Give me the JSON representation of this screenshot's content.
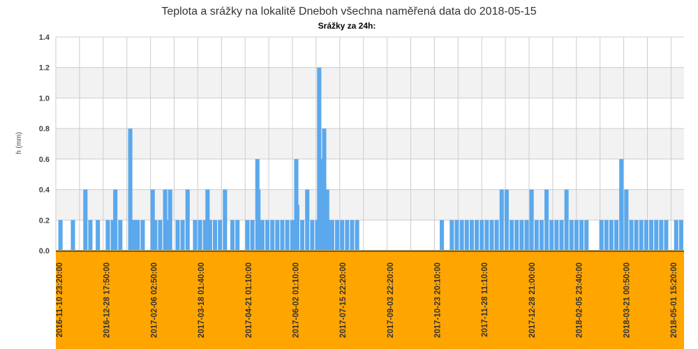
{
  "colors": {
    "bar": "#5ba8ec",
    "band": "#f2f2f2",
    "grid": "#cccccc",
    "axis_band": "#ffa500",
    "axis_line": "#c83232",
    "baseline": "#7ed17e"
  },
  "chart_data": {
    "type": "bar",
    "title": "Teplota a srážky na lokalitě Dneboh všechna naměřená data do 2018-05-15",
    "subtitle": "Srážky za 24h:",
    "ylabel": "h (mm)",
    "xlabel": "",
    "ylim": [
      0,
      1.4
    ],
    "yticks": [
      "0.0",
      "0.2",
      "0.4",
      "0.6",
      "0.8",
      "1.0",
      "1.2",
      "1.4"
    ],
    "grid": true,
    "x_tick_labels": [
      "2016-11-10 23:20:00",
      "2016-12-28 17:50:00",
      "2017-02-06 02:50:00",
      "2017-03-18 01:40:00",
      "2017-04-21 01:10:00",
      "2017-06-02 01:10:00",
      "2017-07-15 22:20:00",
      "2017-09-03 22:20:00",
      "2017-10-23 20:10:00",
      "2017-11-28 11:10:00",
      "2017-12-28 21:00:00",
      "2018-02-05 23:40:00",
      "2018-03-21 00:50:00",
      "2018-05-01 15:20:00"
    ],
    "series": [
      {
        "values": [
          [
            0.5,
            0.2
          ],
          [
            3,
            0.2
          ],
          [
            5.5,
            0.4
          ],
          [
            6.5,
            0.2
          ],
          [
            8,
            0.2
          ],
          [
            10,
            0.2
          ],
          [
            11,
            0.2
          ],
          [
            11.5,
            0.4
          ],
          [
            12.5,
            0.2
          ],
          [
            14.5,
            0.8
          ],
          [
            15,
            0.2
          ],
          [
            15.5,
            0.2
          ],
          [
            16,
            0.2
          ],
          [
            17,
            0.2
          ],
          [
            19,
            0.4
          ],
          [
            19.5,
            0.2
          ],
          [
            20.5,
            0.2
          ],
          [
            21.5,
            0.4
          ],
          [
            22,
            0.2
          ],
          [
            22.5,
            0.4
          ],
          [
            24,
            0.2
          ],
          [
            25,
            0.2
          ],
          [
            26,
            0.4
          ],
          [
            27.5,
            0.2
          ],
          [
            28.5,
            0.2
          ],
          [
            29.5,
            0.2
          ],
          [
            30,
            0.4
          ],
          [
            30.5,
            0.2
          ],
          [
            31.5,
            0.2
          ],
          [
            32.5,
            0.2
          ],
          [
            33.5,
            0.4
          ],
          [
            35,
            0.2
          ],
          [
            36,
            0.2
          ],
          [
            38,
            0.2
          ],
          [
            39,
            0.2
          ],
          [
            40,
            0.6
          ],
          [
            40.2,
            0.4
          ],
          [
            41,
            0.2
          ],
          [
            42,
            0.2
          ],
          [
            43,
            0.2
          ],
          [
            44,
            0.2
          ],
          [
            45,
            0.2
          ],
          [
            46,
            0.2
          ],
          [
            47,
            0.2
          ],
          [
            47.8,
            0.6
          ],
          [
            48,
            0.3
          ],
          [
            49,
            0.2
          ],
          [
            50,
            0.4
          ],
          [
            51,
            0.2
          ],
          [
            52,
            0.2
          ],
          [
            52.4,
            1.2
          ],
          [
            52.6,
            0.6
          ],
          [
            53,
            0.2
          ],
          [
            53.4,
            0.8
          ],
          [
            54,
            0.4
          ],
          [
            54.5,
            0.2
          ],
          [
            55,
            0.2
          ],
          [
            56,
            0.2
          ],
          [
            57,
            0.2
          ],
          [
            58,
            0.2
          ],
          [
            59,
            0.2
          ],
          [
            60,
            0.2
          ],
          [
            77,
            0.2
          ],
          [
            79,
            0.2
          ],
          [
            80,
            0.2
          ],
          [
            81,
            0.2
          ],
          [
            82,
            0.2
          ],
          [
            83,
            0.2
          ],
          [
            84,
            0.2
          ],
          [
            85,
            0.2
          ],
          [
            86,
            0.2
          ],
          [
            87,
            0.2
          ],
          [
            88,
            0.2
          ],
          [
            89,
            0.4
          ],
          [
            90,
            0.4
          ],
          [
            91,
            0.2
          ],
          [
            92,
            0.2
          ],
          [
            93,
            0.2
          ],
          [
            94,
            0.2
          ],
          [
            95,
            0.4
          ],
          [
            96,
            0.2
          ],
          [
            97,
            0.2
          ],
          [
            98,
            0.4
          ],
          [
            99,
            0.2
          ],
          [
            100,
            0.2
          ],
          [
            101,
            0.2
          ],
          [
            102,
            0.4
          ],
          [
            103,
            0.2
          ],
          [
            104,
            0.2
          ],
          [
            105,
            0.2
          ],
          [
            106,
            0.2
          ],
          [
            109,
            0.2
          ],
          [
            110,
            0.2
          ],
          [
            111,
            0.2
          ],
          [
            112,
            0.2
          ],
          [
            113,
            0.6
          ],
          [
            114,
            0.4
          ],
          [
            115,
            0.2
          ],
          [
            116,
            0.2
          ],
          [
            117,
            0.2
          ],
          [
            118,
            0.2
          ],
          [
            119,
            0.2
          ],
          [
            120,
            0.2
          ],
          [
            121,
            0.2
          ],
          [
            122,
            0.2
          ],
          [
            124,
            0.2
          ],
          [
            125,
            0.2
          ]
        ]
      }
    ]
  }
}
